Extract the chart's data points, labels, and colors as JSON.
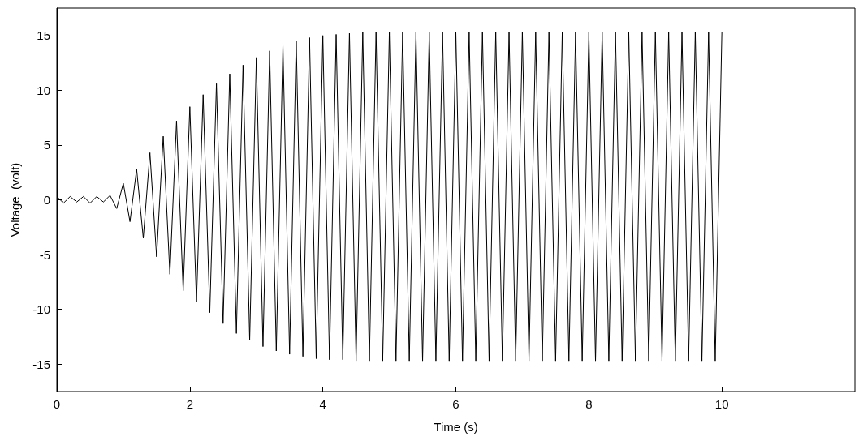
{
  "chart_data": {
    "type": "line",
    "xlabel": "Time (s)",
    "ylabel": "Voltage  (volt)",
    "xlim": [
      0,
      12
    ],
    "xticks": [
      0,
      2,
      4,
      6,
      8,
      10
    ],
    "ylim": [
      -17.5,
      17.5
    ],
    "yticks": [
      -15,
      -10,
      -5,
      0,
      5,
      10,
      15
    ],
    "grid": false,
    "marker": "none",
    "line_style": "solid",
    "series": [
      {
        "color": "#000000",
        "x": [
          0,
          0.1,
          0.2,
          0.3,
          0.4,
          0.5,
          0.6,
          0.7,
          0.8,
          0.9,
          1,
          1.1,
          1.2,
          1.3,
          1.4,
          1.5,
          1.6,
          1.7,
          1.8,
          1.9,
          2,
          2.1,
          2.2,
          2.3,
          2.4,
          2.5,
          2.6,
          2.7,
          2.8,
          2.9,
          3,
          3.1,
          3.2,
          3.3,
          3.4,
          3.5,
          3.6,
          3.7,
          3.8,
          3.9,
          4,
          4.1,
          4.2,
          4.3,
          4.4,
          4.5,
          4.6,
          4.7,
          4.8,
          4.9,
          5,
          5.1,
          5.2,
          5.3,
          5.4,
          5.5,
          5.6,
          5.7,
          5.8,
          5.9,
          6,
          6.1,
          6.2,
          6.3,
          6.4,
          6.5,
          6.6,
          6.7,
          6.8,
          6.9,
          7,
          7.1,
          7.2,
          7.3,
          7.4,
          7.5,
          7.6,
          7.7,
          7.8,
          7.9,
          8,
          8.1,
          8.2,
          8.3,
          8.4,
          8.5,
          8.6,
          8.7,
          8.8,
          8.9,
          9,
          9.1,
          9.2,
          9.3,
          9.4,
          9.5,
          9.6,
          9.7,
          9.8,
          9.9,
          10
        ],
        "values": [
          0.3,
          -0.3,
          0.3,
          -0.2,
          0.3,
          -0.3,
          0.3,
          -0.2,
          0.4,
          -0.8,
          1.5,
          -2,
          2.8,
          -3.5,
          4.3,
          -5.2,
          5.8,
          -6.8,
          7.2,
          -8.3,
          8.5,
          -9.3,
          9.6,
          -10.3,
          10.6,
          -11.3,
          11.5,
          -12.2,
          12.3,
          -12.8,
          13,
          -13.4,
          13.6,
          -13.8,
          14.1,
          -14.1,
          14.5,
          -14.3,
          14.8,
          -14.5,
          15,
          -14.6,
          15.1,
          -14.6,
          15.2,
          -14.7,
          15.3,
          -14.7,
          15.3,
          -14.7,
          15.3,
          -14.7,
          15.3,
          -14.7,
          15.3,
          -14.7,
          15.3,
          -14.7,
          15.3,
          -14.7,
          15.3,
          -14.7,
          15.3,
          -14.7,
          15.3,
          -14.7,
          15.3,
          -14.7,
          15.3,
          -14.7,
          15.3,
          -14.7,
          15.3,
          -14.7,
          15.3,
          -14.7,
          15.3,
          -14.7,
          15.3,
          -14.7,
          15.3,
          -14.7,
          15.3,
          -14.7,
          15.3,
          -14.7,
          15.3,
          -14.7,
          15.3,
          -14.7,
          15.3,
          -14.7,
          15.3,
          -14.7,
          15.3,
          -14.7,
          15.3,
          -14.7,
          15.3,
          -14.7,
          15.3
        ]
      }
    ]
  }
}
